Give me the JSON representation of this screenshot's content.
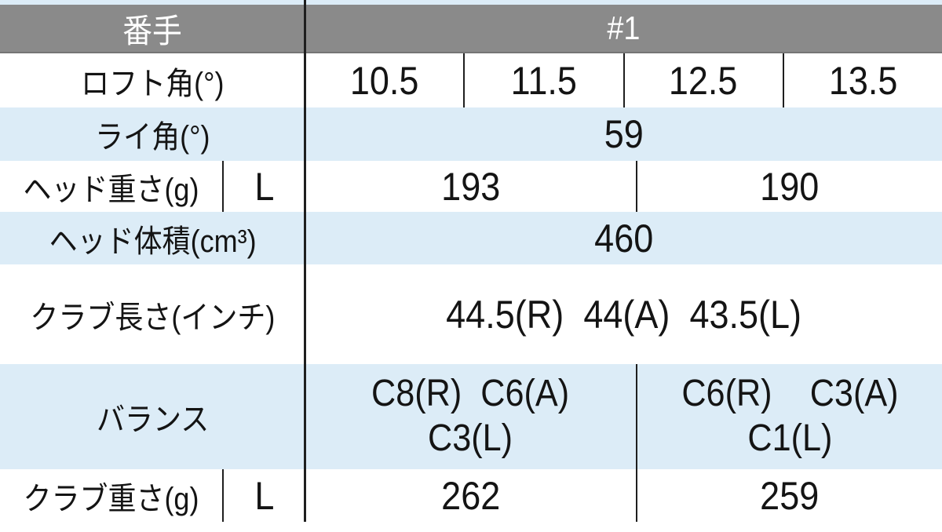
{
  "colors": {
    "header_bg": "#8a8a8a",
    "header_text": "#ffffff",
    "stripe_bg": "#dcecf7",
    "white_bg": "#ffffff",
    "divider": "#1f1f1f",
    "text": "#141414"
  },
  "header": {
    "col1": "番手",
    "col2": "#1"
  },
  "rows": [
    {
      "label": "ロフト角(°)",
      "values": [
        "10.5",
        "11.5",
        "12.5",
        "13.5"
      ]
    },
    {
      "label": "ライ角(°)",
      "values": [
        "59"
      ]
    },
    {
      "label": "ヘッド重さ(g)",
      "sub_label": "L",
      "values": [
        "193",
        "190"
      ]
    },
    {
      "label": "ヘッド体積(cm³)",
      "values": [
        "460"
      ]
    },
    {
      "label": "クラブ長さ(インチ)",
      "values": [
        "44.5(R) 44(A) 43.5(L)"
      ]
    },
    {
      "label": "バランス",
      "values": [
        "C8(R) C6(A)\nC3(L)",
        "C6(R)  C3(A)\nC1(L)"
      ]
    },
    {
      "label": "クラブ重さ(g)",
      "sub_label": "L",
      "values": [
        "262",
        "259"
      ]
    }
  ]
}
